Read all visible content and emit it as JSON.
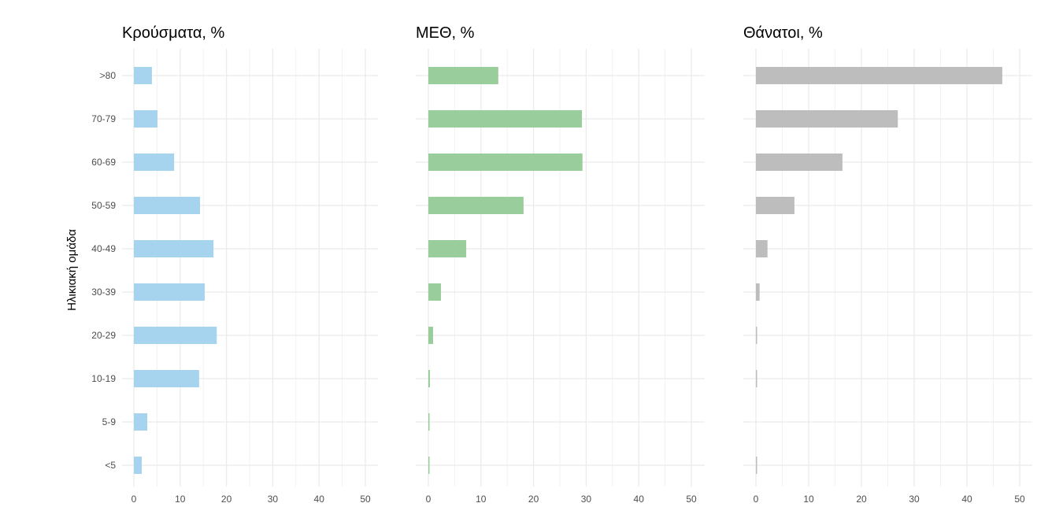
{
  "chart_data": [
    {
      "type": "bar",
      "orientation": "horizontal",
      "title": "Κρούσματα, %",
      "ylabel": "Ηλικιακή ομάδα",
      "xlabel": "",
      "categories": [
        ">80",
        "70-79",
        "60-69",
        "50-59",
        "40-49",
        "30-39",
        "20-29",
        "10-19",
        "5-9",
        "<5"
      ],
      "values": [
        3.9,
        5.1,
        8.7,
        14.3,
        17.2,
        15.3,
        17.9,
        14.1,
        2.9,
        1.7
      ],
      "xlim": [
        0,
        50
      ],
      "xticks": [
        "0",
        "10",
        "20",
        "30",
        "40",
        "50"
      ],
      "color": "#a6d4ee",
      "grid": true
    },
    {
      "type": "bar",
      "orientation": "horizontal",
      "title": "ΜΕΘ, %",
      "categories": [
        ">80",
        "70-79",
        "60-69",
        "50-59",
        "40-49",
        "30-39",
        "20-29",
        "10-19",
        "5-9",
        "<5"
      ],
      "values": [
        13.3,
        29.2,
        29.3,
        18.1,
        7.2,
        2.4,
        0.9,
        0.3,
        0.2,
        0.1
      ],
      "xlim": [
        0,
        50
      ],
      "xticks": [
        "0",
        "10",
        "20",
        "30",
        "40",
        "50"
      ],
      "color": "#9acd9c",
      "grid": true
    },
    {
      "type": "bar",
      "orientation": "horizontal",
      "title": "Θάνατοι, %",
      "categories": [
        ">80",
        "70-79",
        "60-69",
        "50-59",
        "40-49",
        "30-39",
        "20-29",
        "10-19",
        "5-9",
        "<5"
      ],
      "values": [
        46.7,
        26.9,
        16.4,
        7.3,
        2.2,
        0.7,
        0.1,
        0.1,
        0,
        0.1
      ],
      "xlim": [
        0,
        50
      ],
      "xticks": [
        "0",
        "10",
        "20",
        "30",
        "40",
        "50"
      ],
      "color": "#bdbdbd",
      "grid": true
    }
  ]
}
